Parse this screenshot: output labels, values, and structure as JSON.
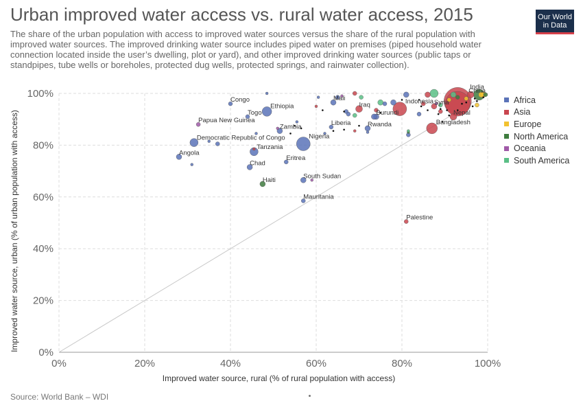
{
  "header": {
    "title": "Urban improved water access vs. rural water access, 2015",
    "subtitle": "The share of the urban population with access to improved water sources versus the share of the rural population with improved water sources. The improved drinking water source includes piped water on premises (piped household water connection located inside the user’s dwelling, plot or yard), and other improved drinking water sources (public taps or standpipes, tube wells or boreholes, protected dug wells, protected springs, and rainwater collection)."
  },
  "logo": {
    "line1": "Our World",
    "line2": "in Data",
    "bg": "#1b2f4b",
    "accent": "#d6404a"
  },
  "footer": {
    "source": "Source: World Bank – WDI"
  },
  "legend": [
    {
      "label": "Africa",
      "color": "#5b73b8"
    },
    {
      "label": "Asia",
      "color": "#c9464f"
    },
    {
      "label": "Europe",
      "color": "#f2c230"
    },
    {
      "label": "North America",
      "color": "#3f7d3f"
    },
    {
      "label": "Oceania",
      "color": "#a05aa8"
    },
    {
      "label": "South America",
      "color": "#5bbf86"
    }
  ],
  "chart_data": {
    "type": "scatter",
    "xlabel": "Improved water source, rural (% of rural population with access)",
    "ylabel": "Improved water source, urban (% of urban population with access)",
    "xlim": [
      0,
      100
    ],
    "ylim": [
      0,
      100
    ],
    "xticks": [
      "0%",
      "20%",
      "40%",
      "60%",
      "80%",
      "100%"
    ],
    "yticks": [
      "0%",
      "20%",
      "40%",
      "60%",
      "80%",
      "100%"
    ],
    "grid": true,
    "diagonal_line": true,
    "legend_position": "right",
    "points": [
      {
        "label": "Congo",
        "region": "Africa",
        "x": 40,
        "y": 96,
        "size": 3
      },
      {
        "label": "Togo",
        "region": "Africa",
        "x": 44,
        "y": 91,
        "size": 3
      },
      {
        "label": "Ethiopia",
        "region": "Africa",
        "x": 48.5,
        "y": 93,
        "size": 7
      },
      {
        "label": "Papua New Guinea",
        "region": "Oceania",
        "x": 32.5,
        "y": 88,
        "size": 3
      },
      {
        "label": "Democratic Republic of Congo",
        "region": "Africa",
        "x": 31.5,
        "y": 81,
        "size": 6
      },
      {
        "label": "Angola",
        "region": "Africa",
        "x": 28,
        "y": 75.5,
        "size": 4
      },
      {
        "label": "Zambia",
        "region": "Africa",
        "x": 51.5,
        "y": 85.5,
        "size": 4
      },
      {
        "label": "Nigeria",
        "region": "Africa",
        "x": 57,
        "y": 80.5,
        "size": 10
      },
      {
        "label": "Tanzania",
        "region": "Africa",
        "x": 45.5,
        "y": 77.5,
        "size": 6
      },
      {
        "label": "Chad",
        "region": "Africa",
        "x": 44.5,
        "y": 71.5,
        "size": 4
      },
      {
        "label": "Eritrea",
        "region": "Africa",
        "x": 53,
        "y": 73.5,
        "size": 3
      },
      {
        "label": "Haiti",
        "region": "North America",
        "x": 47.5,
        "y": 65,
        "size": 4
      },
      {
        "label": "South Sudan",
        "region": "Africa",
        "x": 57,
        "y": 66.5,
        "size": 4
      },
      {
        "label": "Mauritania",
        "region": "Africa",
        "x": 57,
        "y": 58.5,
        "size": 3
      },
      {
        "label": "Liberia",
        "region": "Africa",
        "x": 63.5,
        "y": 87,
        "size": 3
      },
      {
        "label": "Mali",
        "region": "Africa",
        "x": 64,
        "y": 96.5,
        "size": 4
      },
      {
        "label": "Iraq",
        "region": "Asia",
        "x": 70,
        "y": 94,
        "size": 5
      },
      {
        "label": "Burundi",
        "region": "Africa",
        "x": 74,
        "y": 91,
        "size": 4
      },
      {
        "label": "Rwanda",
        "region": "Africa",
        "x": 72,
        "y": 86.5,
        "size": 4
      },
      {
        "label": "Indonesia",
        "region": "Asia",
        "x": 79.5,
        "y": 94,
        "size": 10
      },
      {
        "label": "India",
        "region": "Asia",
        "x": 93,
        "y": 97,
        "size": 20
      },
      {
        "label": "China",
        "region": "Asia",
        "x": 93,
        "y": 96,
        "size": 18
      },
      {
        "label": "Syria",
        "region": "Asia",
        "x": 87.5,
        "y": 95,
        "size": 4
      },
      {
        "label": "Nepal",
        "region": "Asia",
        "x": 92,
        "y": 91,
        "size": 5
      },
      {
        "label": "Bangladesh",
        "region": "Asia",
        "x": 87,
        "y": 86.5,
        "size": 8
      },
      {
        "label": "Palestine",
        "region": "Asia",
        "x": 81,
        "y": 50.5,
        "size": 3
      },
      {
        "label": "",
        "region": "Africa",
        "x": 46,
        "y": 84.5,
        "size": 2
      },
      {
        "label": "",
        "region": "Africa",
        "x": 55.5,
        "y": 89,
        "size": 2
      },
      {
        "label": "",
        "region": "Africa",
        "x": 37,
        "y": 80.5,
        "size": 3
      },
      {
        "label": "",
        "region": "Africa",
        "x": 35,
        "y": 81.5,
        "size": 2
      },
      {
        "label": "",
        "region": "Africa",
        "x": 31,
        "y": 72.5,
        "size": 2
      },
      {
        "label": "",
        "region": "Africa",
        "x": 62,
        "y": 84.5,
        "size": 2
      },
      {
        "label": "",
        "region": "Africa",
        "x": 48.5,
        "y": 100,
        "size": 2
      },
      {
        "label": "",
        "region": "Africa",
        "x": 60.5,
        "y": 98.5,
        "size": 2
      },
      {
        "label": "",
        "region": "Africa",
        "x": 65,
        "y": 98.5,
        "size": 3
      },
      {
        "label": "",
        "region": "Africa",
        "x": 67,
        "y": 93,
        "size": 3
      },
      {
        "label": "",
        "region": "Africa",
        "x": 76,
        "y": 96,
        "size": 3
      },
      {
        "label": "",
        "region": "Africa",
        "x": 78,
        "y": 96.5,
        "size": 4
      },
      {
        "label": "",
        "region": "Africa",
        "x": 81,
        "y": 99.5,
        "size": 4
      },
      {
        "label": "",
        "region": "Africa",
        "x": 81.5,
        "y": 84,
        "size": 3
      },
      {
        "label": "",
        "region": "Africa",
        "x": 84,
        "y": 92,
        "size": 3
      },
      {
        "label": "",
        "region": "Africa",
        "x": 73.5,
        "y": 91,
        "size": 4
      },
      {
        "label": "",
        "region": "Africa",
        "x": 67.5,
        "y": 92,
        "size": 3
      },
      {
        "label": "",
        "region": "Africa",
        "x": 72,
        "y": 85,
        "size": 2
      },
      {
        "label": "",
        "region": "Asia",
        "x": 69,
        "y": 100,
        "size": 3
      },
      {
        "label": "",
        "region": "Asia",
        "x": 69,
        "y": 85.5,
        "size": 2
      },
      {
        "label": "",
        "region": "Asia",
        "x": 60,
        "y": 95,
        "size": 2
      },
      {
        "label": "",
        "region": "Asia",
        "x": 45.5,
        "y": 78.5,
        "size": 2
      },
      {
        "label": "",
        "region": "Asia",
        "x": 86,
        "y": 99.5,
        "size": 4
      },
      {
        "label": "",
        "region": "Asia",
        "x": 89,
        "y": 93,
        "size": 3
      },
      {
        "label": "",
        "region": "Asia",
        "x": 96,
        "y": 99.5,
        "size": 5
      },
      {
        "label": "",
        "region": "Asia",
        "x": 74,
        "y": 93.5,
        "size": 3
      },
      {
        "label": "",
        "region": "Asia",
        "x": 85,
        "y": 96,
        "size": 3
      },
      {
        "label": "",
        "region": "Europe",
        "x": 97.5,
        "y": 95.5,
        "size": 3
      },
      {
        "label": "",
        "region": "Europe",
        "x": 99,
        "y": 99.5,
        "size": 4
      },
      {
        "label": "",
        "region": "Europe",
        "x": 98.5,
        "y": 99.5,
        "size": 4
      },
      {
        "label": "",
        "region": "Europe",
        "x": 95,
        "y": 98,
        "size": 3
      },
      {
        "label": "",
        "region": "Europe",
        "x": 91,
        "y": 97.5,
        "size": 3
      },
      {
        "label": "",
        "region": "North America",
        "x": 98,
        "y": 99.5,
        "size": 8
      },
      {
        "label": "",
        "region": "North America",
        "x": 81.5,
        "y": 85,
        "size": 2
      },
      {
        "label": "",
        "region": "North America",
        "x": 93,
        "y": 98.5,
        "size": 3
      },
      {
        "label": "",
        "region": "North America",
        "x": 99.5,
        "y": 99.5,
        "size": 3
      },
      {
        "label": "",
        "region": "Oceania",
        "x": 51,
        "y": 86.5,
        "size": 2
      },
      {
        "label": "",
        "region": "Oceania",
        "x": 59,
        "y": 66.5,
        "size": 2
      },
      {
        "label": "",
        "region": "Oceania",
        "x": 66,
        "y": 99,
        "size": 2
      },
      {
        "label": "",
        "region": "Oceania",
        "x": 88,
        "y": 96,
        "size": 2
      },
      {
        "label": "",
        "region": "South America",
        "x": 87.5,
        "y": 100,
        "size": 6
      },
      {
        "label": "",
        "region": "South America",
        "x": 75,
        "y": 96.5,
        "size": 4
      },
      {
        "label": "",
        "region": "South America",
        "x": 70.5,
        "y": 98.5,
        "size": 3
      },
      {
        "label": "",
        "region": "South America",
        "x": 92,
        "y": 99.5,
        "size": 4
      },
      {
        "label": "",
        "region": "South America",
        "x": 69,
        "y": 91.5,
        "size": 3
      },
      {
        "label": "",
        "region": "South America",
        "x": 81.5,
        "y": 85.5,
        "size": 2
      },
      {
        "label": "",
        "region": "South America",
        "x": 89,
        "y": 95.5,
        "size": 3
      }
    ],
    "small_black_points": [
      {
        "x": 55,
        "y": 87.5
      },
      {
        "x": 56.5,
        "y": 86.5
      },
      {
        "x": 54,
        "y": 84.5
      },
      {
        "x": 64,
        "y": 85.5
      },
      {
        "x": 66.5,
        "y": 86
      },
      {
        "x": 70,
        "y": 87.5
      },
      {
        "x": 61.5,
        "y": 93.5
      },
      {
        "x": 66.5,
        "y": 93
      },
      {
        "x": 80,
        "y": 97.5
      },
      {
        "x": 84.5,
        "y": 95
      },
      {
        "x": 88.5,
        "y": 92
      },
      {
        "x": 89,
        "y": 94
      },
      {
        "x": 90.5,
        "y": 93.5
      },
      {
        "x": 91,
        "y": 91.5
      },
      {
        "x": 93,
        "y": 93.5
      },
      {
        "x": 95,
        "y": 96.5
      },
      {
        "x": 97,
        "y": 98
      },
      {
        "x": 96.5,
        "y": 95
      },
      {
        "x": 99,
        "y": 98.5
      },
      {
        "x": 97.5,
        "y": 97
      },
      {
        "x": 94,
        "y": 96
      },
      {
        "x": 89.5,
        "y": 89
      },
      {
        "x": 86,
        "y": 93.5
      },
      {
        "x": 84,
        "y": 97.5
      },
      {
        "x": 75,
        "y": 92.5
      }
    ]
  }
}
